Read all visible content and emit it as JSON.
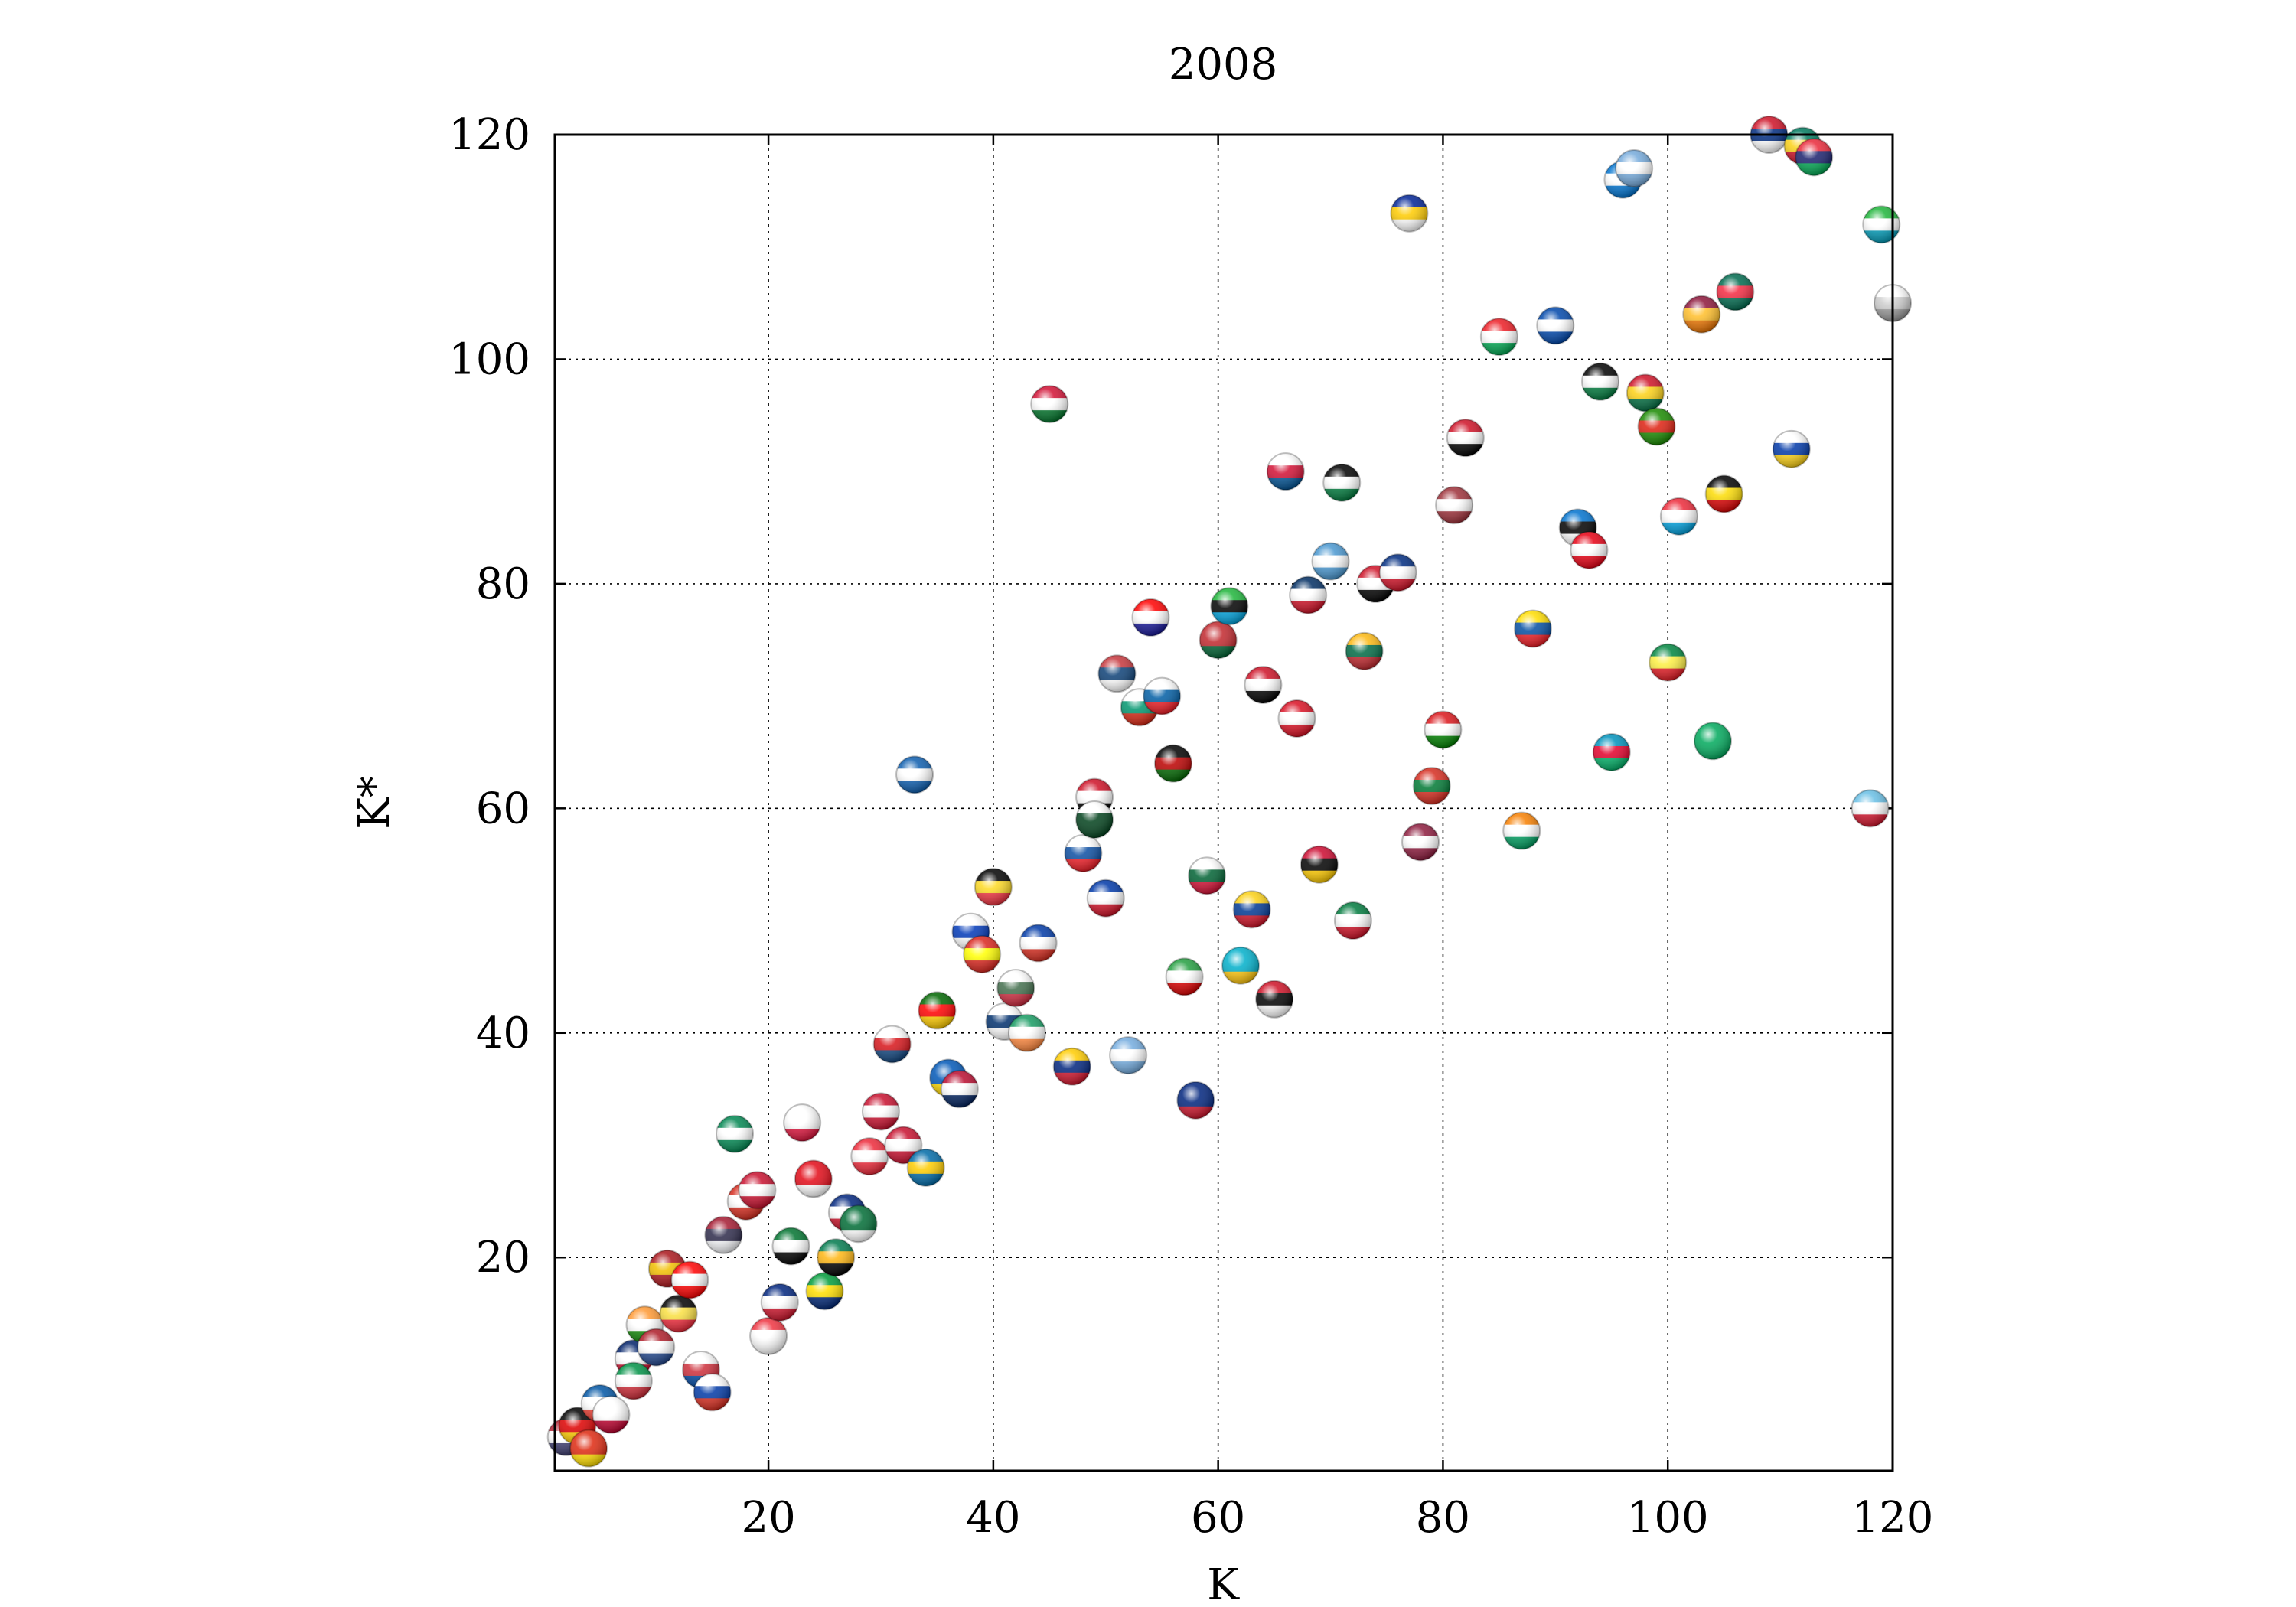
{
  "chart_data": {
    "type": "scatter",
    "title": "2008",
    "xlabel": "K",
    "ylabel": "K*",
    "xlim": [
      1,
      120
    ],
    "ylim": [
      1,
      120
    ],
    "xticks": [
      20,
      40,
      60,
      80,
      100,
      120
    ],
    "yticks": [
      20,
      40,
      60,
      80,
      100,
      120
    ],
    "grid": true,
    "marker": "flag-sphere",
    "points": [
      {
        "x": 2,
        "y": 4,
        "colors": [
          "#b22234",
          "#ffffff",
          "#3c3b6e"
        ]
      },
      {
        "x": 3,
        "y": 5,
        "colors": [
          "#000000",
          "#dd0000",
          "#ffce00"
        ]
      },
      {
        "x": 4,
        "y": 3,
        "colors": [
          "#de2910",
          "#de2910",
          "#ffde00"
        ]
      },
      {
        "x": 5,
        "y": 7,
        "colors": [
          "#0055a4",
          "#ffffff",
          "#ef4135"
        ]
      },
      {
        "x": 6,
        "y": 6,
        "colors": [
          "#ffffff",
          "#ffffff",
          "#bc002d"
        ]
      },
      {
        "x": 8,
        "y": 11,
        "colors": [
          "#012169",
          "#ffffff",
          "#c8102e"
        ]
      },
      {
        "x": 8,
        "y": 9,
        "colors": [
          "#009246",
          "#ffffff",
          "#ce2b37"
        ]
      },
      {
        "x": 9,
        "y": 14,
        "colors": [
          "#ff9933",
          "#ffffff",
          "#138808"
        ]
      },
      {
        "x": 10,
        "y": 12,
        "colors": [
          "#ae1c28",
          "#ffffff",
          "#21468b"
        ]
      },
      {
        "x": 11,
        "y": 19,
        "colors": [
          "#aa151b",
          "#f1bf00",
          "#aa151b"
        ]
      },
      {
        "x": 12,
        "y": 15,
        "colors": [
          "#000000",
          "#fae042",
          "#ed2939"
        ]
      },
      {
        "x": 13,
        "y": 18,
        "colors": [
          "#ff0000",
          "#ffffff",
          "#ff0000"
        ]
      },
      {
        "x": 14,
        "y": 10,
        "colors": [
          "#ffffff",
          "#cd2e3a",
          "#0047a0"
        ]
      },
      {
        "x": 15,
        "y": 8,
        "colors": [
          "#ffffff",
          "#0039a6",
          "#d52b1e"
        ]
      },
      {
        "x": 16,
        "y": 22,
        "colors": [
          "#a51931",
          "#2d2a4a",
          "#f4f5f8"
        ]
      },
      {
        "x": 17,
        "y": 31,
        "colors": [
          "#008751",
          "#ffffff",
          "#008751"
        ]
      },
      {
        "x": 18,
        "y": 25,
        "colors": [
          "#d52b1e",
          "#ffffff",
          "#d52b1e"
        ]
      },
      {
        "x": 19,
        "y": 26,
        "colors": [
          "#c8102e",
          "#ffffff",
          "#c8102e"
        ]
      },
      {
        "x": 20,
        "y": 13,
        "colors": [
          "#ef3340",
          "#ffffff",
          "#ffffff"
        ]
      },
      {
        "x": 21,
        "y": 16,
        "colors": [
          "#00247d",
          "#ffffff",
          "#cc142b"
        ]
      },
      {
        "x": 22,
        "y": 21,
        "colors": [
          "#00732f",
          "#ffffff",
          "#000000"
        ]
      },
      {
        "x": 23,
        "y": 32,
        "colors": [
          "#ffffff",
          "#ffffff",
          "#dc143c"
        ]
      },
      {
        "x": 24,
        "y": 27,
        "colors": [
          "#e30a17",
          "#e30a17",
          "#ffffff"
        ]
      },
      {
        "x": 25,
        "y": 17,
        "colors": [
          "#009c3b",
          "#ffdf00",
          "#002776"
        ]
      },
      {
        "x": 26,
        "y": 20,
        "colors": [
          "#007a4d",
          "#ffb612",
          "#000000"
        ]
      },
      {
        "x": 27,
        "y": 24,
        "colors": [
          "#00247d",
          "#ffffff",
          "#cc142b"
        ]
      },
      {
        "x": 28,
        "y": 23,
        "colors": [
          "#006c35",
          "#006c35",
          "#ffffff"
        ]
      },
      {
        "x": 29,
        "y": 29,
        "colors": [
          "#ed2939",
          "#ffffff",
          "#ed2939"
        ]
      },
      {
        "x": 30,
        "y": 33,
        "colors": [
          "#c8102e",
          "#ffffff",
          "#c8102e"
        ]
      },
      {
        "x": 31,
        "y": 39,
        "colors": [
          "#ffffff",
          "#d7141a",
          "#11457e"
        ]
      },
      {
        "x": 32,
        "y": 30,
        "colors": [
          "#c8102e",
          "#ffffff",
          "#c8102e"
        ]
      },
      {
        "x": 33,
        "y": 63,
        "colors": [
          "#0d5eaf",
          "#ffffff",
          "#0d5eaf"
        ]
      },
      {
        "x": 34,
        "y": 28,
        "colors": [
          "#006aa7",
          "#fecc00",
          "#006aa7"
        ]
      },
      {
        "x": 35,
        "y": 42,
        "colors": [
          "#006600",
          "#ff0000",
          "#ffcc00"
        ]
      },
      {
        "x": 36,
        "y": 36,
        "colors": [
          "#0057b7",
          "#0057b7",
          "#ffd700"
        ]
      },
      {
        "x": 37,
        "y": 35,
        "colors": [
          "#ba0c2f",
          "#ffffff",
          "#00205b"
        ]
      },
      {
        "x": 38,
        "y": 49,
        "colors": [
          "#ffffff",
          "#0038b8",
          "#ffffff"
        ]
      },
      {
        "x": 39,
        "y": 47,
        "colors": [
          "#da251d",
          "#ffff00",
          "#da251d"
        ]
      },
      {
        "x": 40,
        "y": 53,
        "colors": [
          "#000000",
          "#fdda24",
          "#ef3340"
        ]
      },
      {
        "x": 41,
        "y": 41,
        "colors": [
          "#ffffff",
          "#002f6c",
          "#ffffff"
        ]
      },
      {
        "x": 42,
        "y": 44,
        "colors": [
          "#ffffff",
          "#436f4d",
          "#cd2a3e"
        ]
      },
      {
        "x": 43,
        "y": 40,
        "colors": [
          "#169b62",
          "#ffffff",
          "#ff883e"
        ]
      },
      {
        "x": 44,
        "y": 48,
        "colors": [
          "#0039a6",
          "#ffffff",
          "#d52b1e"
        ]
      },
      {
        "x": 45,
        "y": 96,
        "colors": [
          "#d21034",
          "#ffffff",
          "#007229"
        ]
      },
      {
        "x": 47,
        "y": 37,
        "colors": [
          "#ffcc00",
          "#00247d",
          "#cf142b"
        ]
      },
      {
        "x": 48,
        "y": 56,
        "colors": [
          "#ffffff",
          "#0b4ea2",
          "#ee1c25"
        ]
      },
      {
        "x": 49,
        "y": 61,
        "colors": [
          "#ce1126",
          "#ffffff",
          "#000000"
        ]
      },
      {
        "x": 49,
        "y": 59,
        "colors": [
          "#ffffff",
          "#01411c",
          "#01411c"
        ]
      },
      {
        "x": 50,
        "y": 52,
        "colors": [
          "#0038a8",
          "#ffffff",
          "#ce1126"
        ]
      },
      {
        "x": 51,
        "y": 72,
        "colors": [
          "#c6363c",
          "#0c4076",
          "#ffffff"
        ]
      },
      {
        "x": 52,
        "y": 38,
        "colors": [
          "#74acdf",
          "#ffffff",
          "#74acdf"
        ]
      },
      {
        "x": 53,
        "y": 69,
        "colors": [
          "#ffffff",
          "#00966e",
          "#d62612"
        ]
      },
      {
        "x": 54,
        "y": 77,
        "colors": [
          "#ff0000",
          "#ffffff",
          "#171796"
        ]
      },
      {
        "x": 55,
        "y": 70,
        "colors": [
          "#ffffff",
          "#005da4",
          "#ed1c24"
        ]
      },
      {
        "x": 56,
        "y": 64,
        "colors": [
          "#000000",
          "#bb0000",
          "#006600"
        ]
      },
      {
        "x": 57,
        "y": 45,
        "colors": [
          "#239f40",
          "#ffffff",
          "#da0000"
        ]
      },
      {
        "x": 58,
        "y": 34,
        "colors": [
          "#00247d",
          "#00247d",
          "#cc142b"
        ]
      },
      {
        "x": 59,
        "y": 54,
        "colors": [
          "#ffffff",
          "#006233",
          "#d21034"
        ]
      },
      {
        "x": 60,
        "y": 75,
        "colors": [
          "#c1272d",
          "#c1272d",
          "#006233"
        ]
      },
      {
        "x": 61,
        "y": 78,
        "colors": [
          "#1eb53a",
          "#000000",
          "#00a3dd"
        ]
      },
      {
        "x": 62,
        "y": 46,
        "colors": [
          "#00afca",
          "#00afca",
          "#fec50c"
        ]
      },
      {
        "x": 63,
        "y": 51,
        "colors": [
          "#fcd116",
          "#003893",
          "#ce1126"
        ]
      },
      {
        "x": 64,
        "y": 71,
        "colors": [
          "#ce1126",
          "#ffffff",
          "#000000"
        ]
      },
      {
        "x": 65,
        "y": 43,
        "colors": [
          "#ce1126",
          "#000000",
          "#ffffff"
        ]
      },
      {
        "x": 66,
        "y": 90,
        "colors": [
          "#ffffff",
          "#d21034",
          "#005293"
        ]
      },
      {
        "x": 67,
        "y": 68,
        "colors": [
          "#d91023",
          "#ffffff",
          "#d91023"
        ]
      },
      {
        "x": 68,
        "y": 79,
        "colors": [
          "#002d62",
          "#ffffff",
          "#ce1126"
        ]
      },
      {
        "x": 69,
        "y": 55,
        "colors": [
          "#cc092f",
          "#000000",
          "#ffcb00"
        ]
      },
      {
        "x": 70,
        "y": 82,
        "colors": [
          "#4997d0",
          "#ffffff",
          "#4997d0"
        ]
      },
      {
        "x": 71,
        "y": 89,
        "colors": [
          "#000000",
          "#ffffff",
          "#007a3d"
        ]
      },
      {
        "x": 72,
        "y": 50,
        "colors": [
          "#007a3d",
          "#ffffff",
          "#ce1126"
        ]
      },
      {
        "x": 73,
        "y": 74,
        "colors": [
          "#fdb913",
          "#006a44",
          "#c1272d"
        ]
      },
      {
        "x": 74,
        "y": 80,
        "colors": [
          "#ce1126",
          "#ffffff",
          "#000000"
        ]
      },
      {
        "x": 76,
        "y": 81,
        "colors": [
          "#002b7f",
          "#ffffff",
          "#ce1126"
        ]
      },
      {
        "x": 77,
        "y": 113,
        "colors": [
          "#002395",
          "#fecb00",
          "#ffffff"
        ]
      },
      {
        "x": 78,
        "y": 57,
        "colors": [
          "#8d1b3d",
          "#ffffff",
          "#8d1b3d"
        ]
      },
      {
        "x": 79,
        "y": 62,
        "colors": [
          "#d52b1e",
          "#007934",
          "#d52b1e"
        ]
      },
      {
        "x": 80,
        "y": 67,
        "colors": [
          "#db161b",
          "#ffffff",
          "#008000"
        ]
      },
      {
        "x": 81,
        "y": 87,
        "colors": [
          "#9e3039",
          "#ffffff",
          "#9e3039"
        ]
      },
      {
        "x": 82,
        "y": 93,
        "colors": [
          "#ce1126",
          "#ffffff",
          "#000000"
        ]
      },
      {
        "x": 85,
        "y": 102,
        "colors": [
          "#ed1c24",
          "#ffffff",
          "#00a651"
        ]
      },
      {
        "x": 87,
        "y": 58,
        "colors": [
          "#f77f00",
          "#ffffff",
          "#009e60"
        ]
      },
      {
        "x": 88,
        "y": 76,
        "colors": [
          "#ffdd00",
          "#034ea2",
          "#ed1c24"
        ]
      },
      {
        "x": 90,
        "y": 103,
        "colors": [
          "#0047ab",
          "#ffffff",
          "#0047ab"
        ]
      },
      {
        "x": 92,
        "y": 85,
        "colors": [
          "#0072ce",
          "#000000",
          "#ffffff"
        ]
      },
      {
        "x": 93,
        "y": 83,
        "colors": [
          "#e70013",
          "#ffffff",
          "#e70013"
        ]
      },
      {
        "x": 94,
        "y": 98,
        "colors": [
          "#000000",
          "#ffffff",
          "#007a3d"
        ]
      },
      {
        "x": 95,
        "y": 65,
        "colors": [
          "#0092bc",
          "#e4002b",
          "#00af66"
        ]
      },
      {
        "x": 96,
        "y": 116,
        "colors": [
          "#0073cf",
          "#ffffff",
          "#0073cf"
        ]
      },
      {
        "x": 97,
        "y": 117,
        "colors": [
          "#75aadb",
          "#ffffff",
          "#75aadb"
        ]
      },
      {
        "x": 98,
        "y": 97,
        "colors": [
          "#ce1126",
          "#fcd116",
          "#006b3f"
        ]
      },
      {
        "x": 99,
        "y": 94,
        "colors": [
          "#198a00",
          "#de2010",
          "#198a00"
        ]
      },
      {
        "x": 100,
        "y": 73,
        "colors": [
          "#00853f",
          "#fdef42",
          "#e31b23"
        ]
      },
      {
        "x": 101,
        "y": 86,
        "colors": [
          "#ed2939",
          "#ffffff",
          "#00a1de"
        ]
      },
      {
        "x": 103,
        "y": 104,
        "colors": [
          "#8d153a",
          "#ffbe29",
          "#eb7400"
        ]
      },
      {
        "x": 104,
        "y": 66,
        "colors": [
          "#00a95c",
          "#00a95c",
          "#00a95c"
        ]
      },
      {
        "x": 105,
        "y": 88,
        "colors": [
          "#000000",
          "#fcdc04",
          "#d90000"
        ]
      },
      {
        "x": 106,
        "y": 106,
        "colors": [
          "#006a4e",
          "#f42a41",
          "#006a4e"
        ]
      },
      {
        "x": 109,
        "y": 120,
        "colors": [
          "#ce1126",
          "#002b7f",
          "#ffffff"
        ]
      },
      {
        "x": 111,
        "y": 92,
        "colors": [
          "#ffffff",
          "#0038a8",
          "#fcd116"
        ]
      },
      {
        "x": 112,
        "y": 119,
        "colors": [
          "#007a5e",
          "#fcd116",
          "#ce1126"
        ]
      },
      {
        "x": 113,
        "y": 118,
        "colors": [
          "#ea2839",
          "#1a206d",
          "#00a551"
        ]
      },
      {
        "x": 118,
        "y": 60,
        "colors": [
          "#68bfe5",
          "#ffffff",
          "#cf142b"
        ]
      },
      {
        "x": 119,
        "y": 112,
        "colors": [
          "#1eb53a",
          "#ffffff",
          "#0099b5"
        ]
      },
      {
        "x": 120,
        "y": 105,
        "colors": [
          "#ffffff",
          "#cccccc",
          "#999999"
        ]
      }
    ]
  }
}
